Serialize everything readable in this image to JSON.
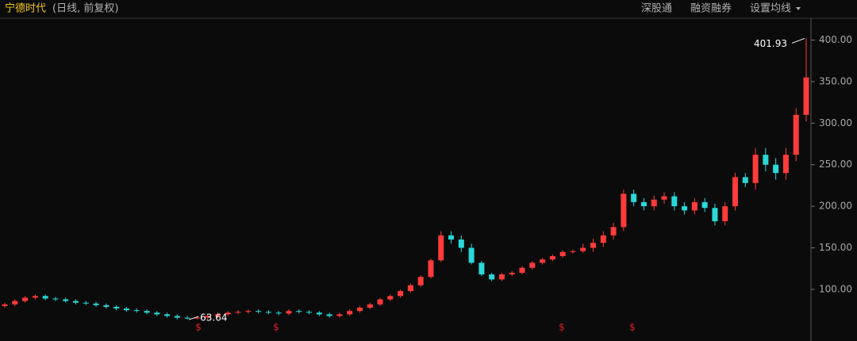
{
  "chart_data": {
    "type": "candlestick",
    "title": "宁德时代",
    "subtitle": "(日线, 前复权)",
    "menu": [
      "深股通",
      "融资融券",
      "设置均线"
    ],
    "up_color": "#ff3b3b",
    "down_color": "#2ad8d8",
    "open": [
      80,
      82,
      86,
      90,
      92,
      89,
      88,
      86,
      84,
      83,
      81,
      79,
      77,
      75,
      74,
      72,
      70,
      68,
      66,
      65,
      66,
      68,
      70,
      72,
      73,
      74,
      73,
      72,
      71,
      74,
      73,
      72,
      70,
      68,
      70,
      74,
      78,
      82,
      88,
      92,
      98,
      105,
      115,
      135,
      165,
      160,
      150,
      132,
      118,
      112,
      118,
      120,
      126,
      132,
      136,
      140,
      145,
      146,
      150,
      156,
      165,
      175,
      215,
      205,
      200,
      208,
      212,
      200,
      195,
      205,
      198,
      182,
      200,
      235,
      228,
      262,
      250,
      240,
      262,
      310
    ],
    "high": [
      84,
      88,
      92,
      94,
      94,
      91,
      90,
      88,
      86,
      85,
      83,
      81,
      79,
      77,
      76,
      74,
      72,
      70,
      68,
      68,
      70,
      72,
      74,
      75,
      76,
      76,
      75,
      74,
      76,
      76,
      75,
      74,
      72,
      72,
      76,
      80,
      84,
      90,
      94,
      100,
      107,
      117,
      137,
      170,
      170,
      165,
      155,
      134,
      120,
      120,
      122,
      128,
      134,
      138,
      142,
      147,
      148,
      155,
      161,
      170,
      180,
      220,
      220,
      210,
      213,
      217,
      217,
      205,
      210,
      210,
      203,
      205,
      240,
      240,
      270,
      270,
      258,
      270,
      318,
      401.93
    ],
    "low": [
      78,
      80,
      84,
      88,
      87,
      86,
      84,
      82,
      81,
      79,
      77,
      75,
      73,
      72,
      70,
      68,
      66,
      64,
      63.64,
      64,
      64,
      66,
      68,
      70,
      71,
      71,
      70,
      69,
      69,
      71,
      70,
      68,
      66,
      66,
      68,
      72,
      76,
      80,
      86,
      90,
      96,
      103,
      113,
      133,
      155,
      145,
      130,
      116,
      110,
      110,
      116,
      118,
      124,
      130,
      134,
      138,
      143,
      144,
      145,
      151,
      160,
      170,
      200,
      195,
      195,
      203,
      195,
      190,
      190,
      193,
      177,
      177,
      195,
      223,
      220,
      242,
      232,
      232,
      254,
      302
    ],
    "close": [
      82,
      86,
      90,
      92,
      89,
      88,
      86,
      84,
      83,
      81,
      79,
      77,
      75,
      74,
      72,
      70,
      68,
      66,
      65,
      66,
      68,
      70,
      72,
      73,
      74,
      73,
      72,
      71,
      74,
      73,
      72,
      70,
      68,
      70,
      74,
      78,
      82,
      88,
      92,
      98,
      105,
      115,
      135,
      165,
      160,
      150,
      132,
      118,
      112,
      118,
      120,
      126,
      132,
      136,
      140,
      145,
      146,
      150,
      156,
      165,
      175,
      215,
      205,
      200,
      208,
      212,
      200,
      195,
      205,
      198,
      182,
      200,
      235,
      228,
      262,
      250,
      240,
      262,
      310,
      355
    ],
    "ylim": [
      57,
      410
    ],
    "yticks": [
      {
        "value": 100,
        "label": "100.00"
      },
      {
        "value": 150,
        "label": "150.00"
      },
      {
        "value": 200,
        "label": "200.00"
      },
      {
        "value": 250,
        "label": "250.00"
      },
      {
        "value": 300,
        "label": "300.00"
      },
      {
        "value": 350,
        "label": "350.00"
      },
      {
        "value": 400,
        "label": "400.00"
      }
    ],
    "max_annotation": {
      "value": 401.93,
      "label": "401.93"
    },
    "min_annotation": {
      "value": 63.64,
      "label": "63.64"
    },
    "event_markers": [
      "$",
      "$",
      "$",
      "$"
    ]
  }
}
